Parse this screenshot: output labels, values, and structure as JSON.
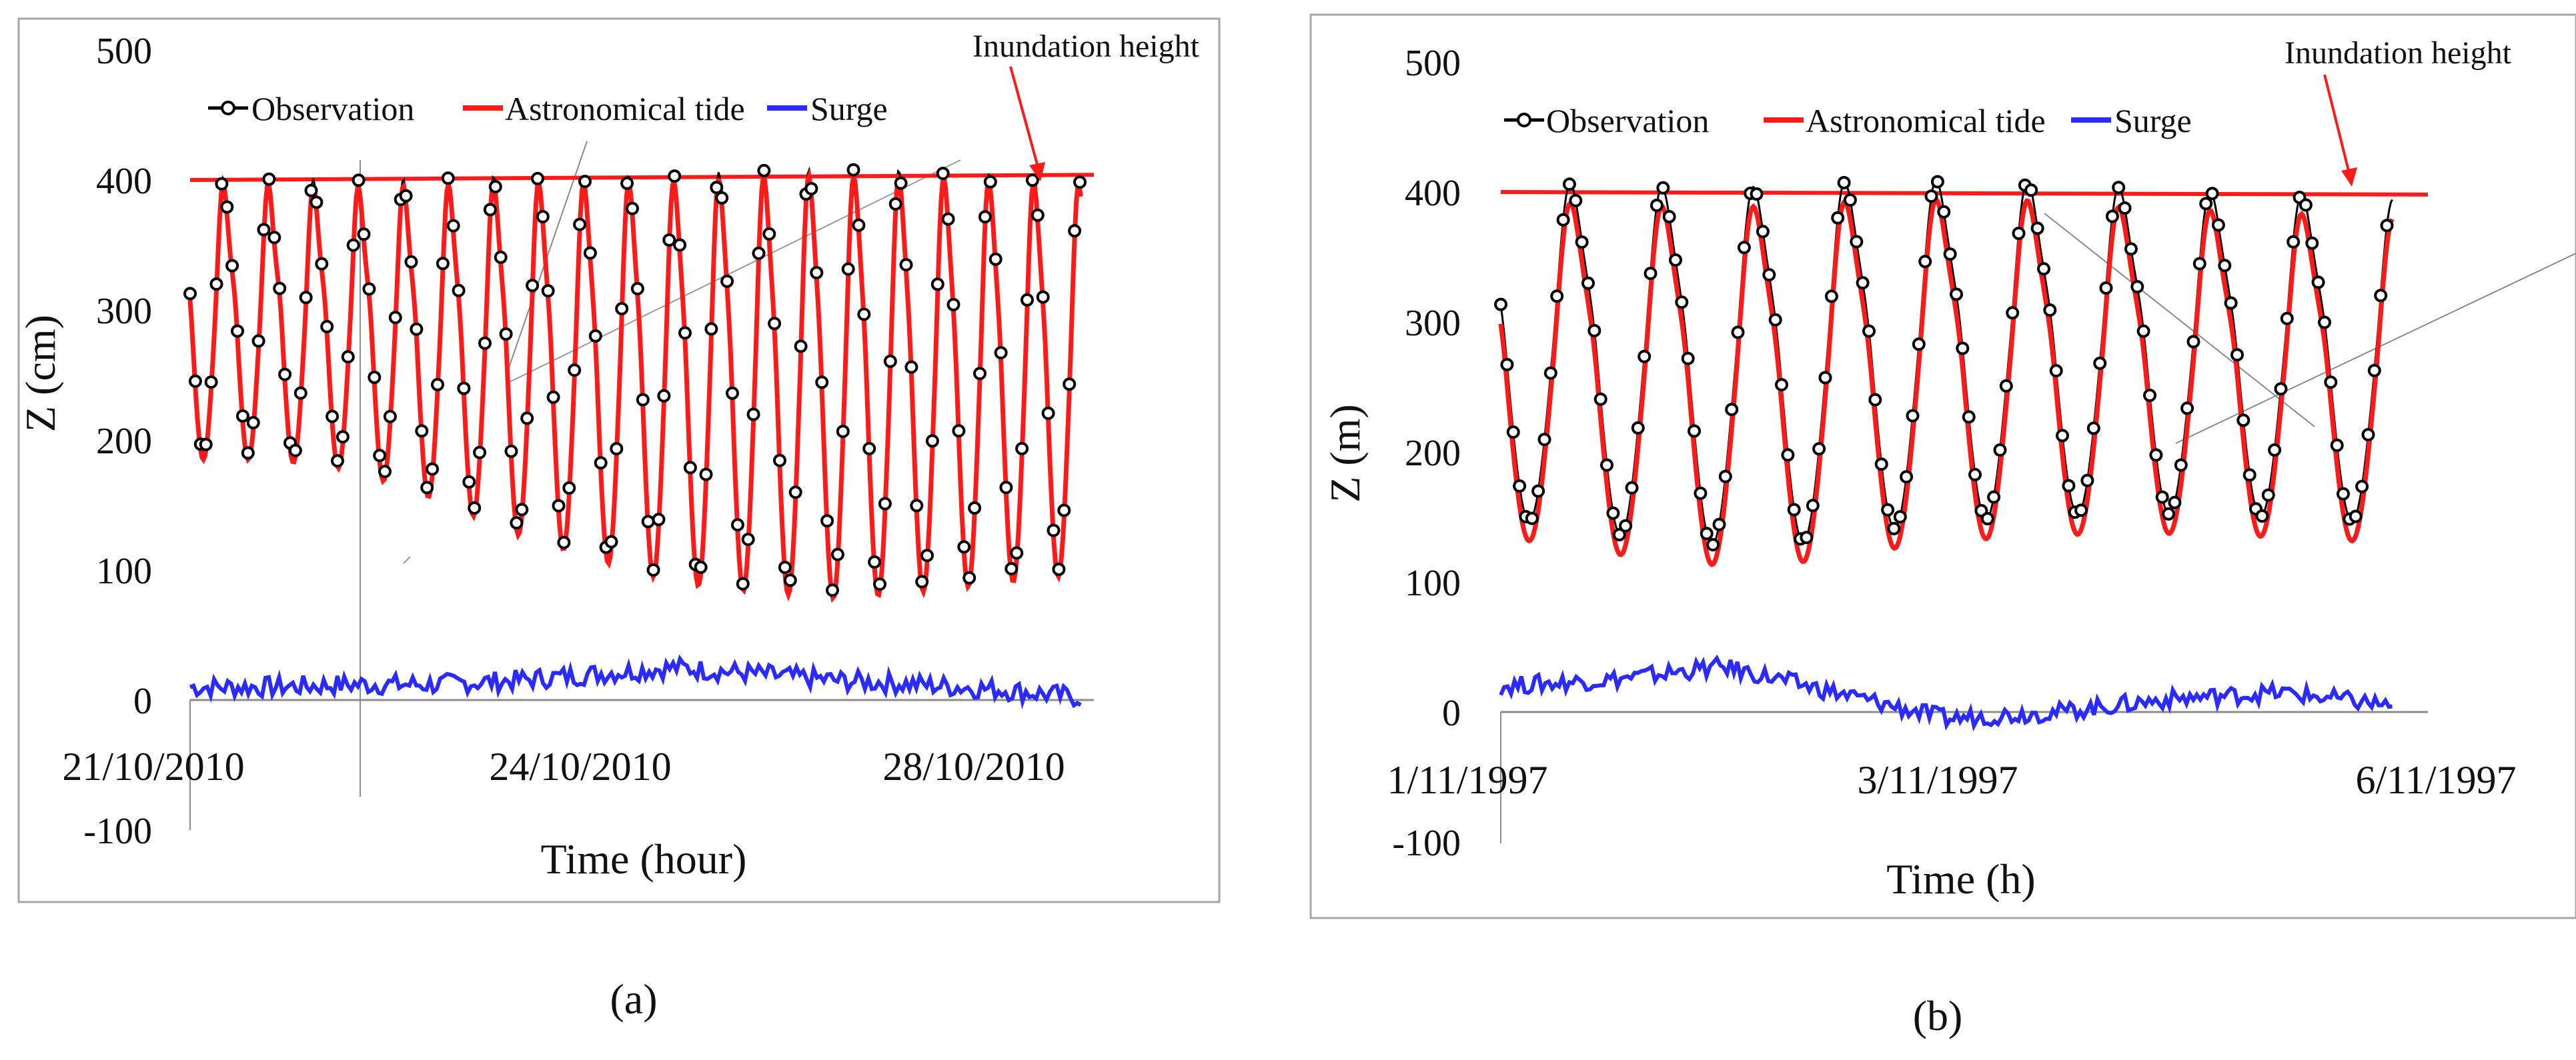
{
  "colors": {
    "observation": "#000000",
    "astronomical_tide": "#ff1a1a",
    "surge": "#2b2bff",
    "inundation": "#ff1a1a",
    "frame": "#a6a6a6",
    "axis": "#8c8c8c",
    "stray": "#8a8a8a"
  },
  "chart_data": [
    {
      "type": "line",
      "panel_label": "(a)",
      "ylabel": "Z (cm)",
      "xlabel": "Time (hour)",
      "ylim": [
        -100,
        500
      ],
      "yticks": [
        -100,
        0,
        100,
        200,
        300,
        400,
        500
      ],
      "xlim": [
        0,
        10.3
      ],
      "xtick_labels": [
        {
          "label": "21/10/2010",
          "x": 0
        },
        {
          "label": "24/10/2010",
          "x": 4.5
        },
        {
          "label": "28/10/2010",
          "x": 9.0
        }
      ],
      "legend": [
        "Observation",
        "Astronomical tide",
        "Surge"
      ],
      "annotation": "Inundation height",
      "inundation_height": {
        "start": 400,
        "end": 404
      },
      "series": {
        "astronomical_tide": {
          "x_start": 0,
          "x_end": 10.15,
          "cycles_per_unit": 1.95,
          "phase": 1.3,
          "mean": [
            285,
            285,
            280,
            270,
            258,
            248,
            240,
            238,
            236,
            238,
            240,
            242
          ],
          "amplitude": [
            100,
            100,
            103,
            115,
            130,
            140,
            150,
            155,
            158,
            155,
            150,
            145
          ],
          "ripple": 60,
          "ripple_phase": 1.57
        },
        "observation": {
          "marker_step": 0.06,
          "offset": 5,
          "marker_x_start": 0,
          "marker_x_end": 10.15
        },
        "surge": {
          "base": [
            10,
            10,
            12,
            12,
            15,
            20,
            25,
            20,
            15,
            12,
            8,
            2
          ],
          "noise_amp": 8
        }
      }
    },
    {
      "type": "line",
      "panel_label": "(b)",
      "ylabel": "Z (m)",
      "xlabel": "Time (h)",
      "ylim": [
        -100,
        500
      ],
      "yticks": [
        -100,
        0,
        100,
        200,
        300,
        400,
        500
      ],
      "xlim": [
        0,
        5.2
      ],
      "xtick_labels": [
        {
          "label": "1/11/1997",
          "x": 0
        },
        {
          "label": "3/11/1997",
          "x": 2.5
        },
        {
          "label": "6/11/1997",
          "x": 5.0
        }
      ],
      "legend": [
        "Observation",
        "Astronomical tide",
        "Surge"
      ],
      "annotation": "Inundation height",
      "inundation_height": {
        "start": 400,
        "end": 398
      },
      "series": {
        "astronomical_tide": {
          "x_start": 0,
          "x_end": 5.0,
          "cycles_per_unit": 1.95,
          "phase": 1.2,
          "mean": [
            260,
            250,
            245,
            255,
            260,
            258,
            255,
            250
          ],
          "amplitude": [
            125,
            130,
            135,
            130,
            125,
            120,
            120,
            120
          ],
          "ripple": 55,
          "ripple_phase": 1.57
        },
        "observation": {
          "marker_step": 0.035,
          "offset": 15,
          "marker_x_start": 0,
          "marker_x_end": 5.0
        },
        "surge": {
          "base": [
            20,
            25,
            35,
            15,
            -5,
            0,
            10,
            15,
            5
          ],
          "noise_amp": 7
        }
      }
    }
  ]
}
